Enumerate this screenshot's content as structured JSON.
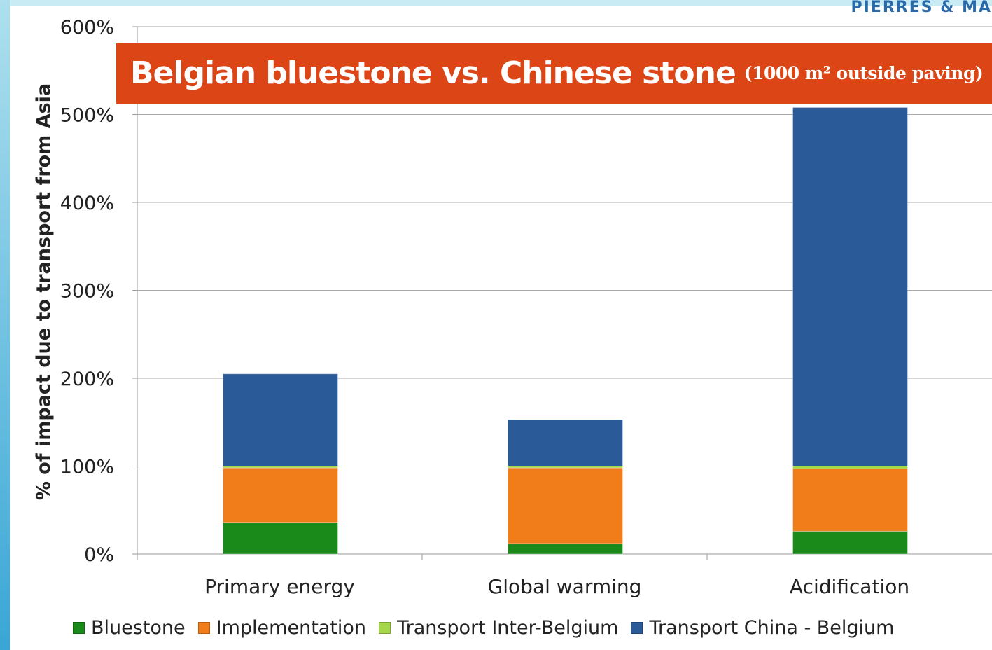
{
  "header": {
    "brand_text": "PIERRES & MA"
  },
  "title": {
    "main": "Belgian bluestone vs. Chinese stone",
    "sub": "(1000 m² outside paving)"
  },
  "colors": {
    "banner": "#dc4616",
    "bluestone": "#1a8a1a",
    "implementation": "#f07d1a",
    "transport_inter_belgium": "#a6d64a",
    "transport_china_belgium": "#2a5a98"
  },
  "chart_data": {
    "type": "bar",
    "stacked": true,
    "categories": [
      "Primary energy",
      "Global warming",
      "Acidification"
    ],
    "ylabel": "% of impact due to transport from Asia",
    "yticks": [
      "0%",
      "100%",
      "200%",
      "300%",
      "400%",
      "500%",
      "600%"
    ],
    "ylim": [
      0,
      600
    ],
    "grid": true,
    "legend_position": "bottom",
    "series": [
      {
        "name": "Bluestone",
        "color": "#1a8a1a",
        "values": [
          36,
          12,
          26
        ]
      },
      {
        "name": "Implementation",
        "color": "#f07d1a",
        "values": [
          62,
          86,
          71
        ]
      },
      {
        "name": "Transport Inter-Belgium",
        "color": "#a6d64a",
        "values": [
          2,
          2,
          3
        ]
      },
      {
        "name": "Transport China - Belgium",
        "color": "#2a5a98",
        "values": [
          105,
          53,
          408
        ]
      }
    ]
  }
}
